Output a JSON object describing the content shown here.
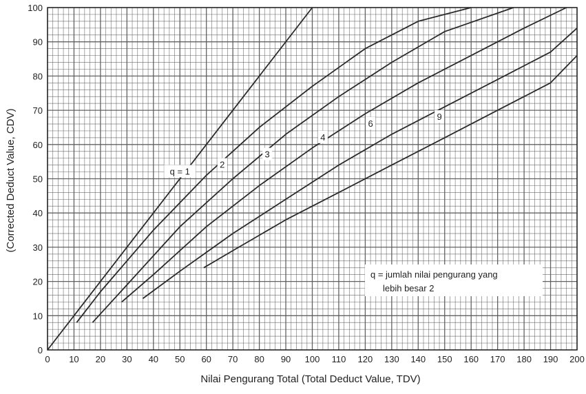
{
  "chart_data": {
    "type": "line",
    "title": "",
    "xlabel": "Nilai Pengurang Total (Total Deduct Value, TDV)",
    "ylabel": "(Corrected Deduct Value, CDV)",
    "xlim": [
      0,
      200
    ],
    "ylim": [
      0,
      100
    ],
    "x_ticks": [
      "0",
      "10",
      "20",
      "30",
      "40",
      "50",
      "60",
      "70",
      "80",
      "90",
      "100",
      "110",
      "120",
      "130",
      "140",
      "150",
      "160",
      "170",
      "180",
      "190",
      "200"
    ],
    "y_ticks": [
      "0",
      "10",
      "20",
      "30",
      "40",
      "50",
      "60",
      "70",
      "80",
      "90",
      "100"
    ],
    "grid": true,
    "series": [
      {
        "name": "q = 1",
        "label": "q = 1",
        "label_at": [
          50,
          52
        ],
        "points": [
          [
            0,
            0
          ],
          [
            20,
            20
          ],
          [
            40,
            40
          ],
          [
            60,
            60
          ],
          [
            80,
            80
          ],
          [
            100,
            100
          ]
        ]
      },
      {
        "name": "2",
        "label": "2",
        "label_at": [
          66,
          54
        ],
        "points": [
          [
            11,
            8
          ],
          [
            20,
            17
          ],
          [
            40,
            35
          ],
          [
            60,
            51
          ],
          [
            80,
            65
          ],
          [
            100,
            77
          ],
          [
            120,
            88
          ],
          [
            140,
            96
          ],
          [
            160,
            100
          ]
        ]
      },
      {
        "name": "3",
        "label": "3",
        "label_at": [
          83,
          57
        ],
        "points": [
          [
            17,
            8
          ],
          [
            30,
            19
          ],
          [
            50,
            36
          ],
          [
            70,
            50
          ],
          [
            90,
            63
          ],
          [
            110,
            74
          ],
          [
            130,
            84
          ],
          [
            150,
            93
          ],
          [
            176,
            100
          ]
        ]
      },
      {
        "name": "4",
        "label": "4",
        "label_at": [
          104,
          62
        ],
        "points": [
          [
            28,
            14
          ],
          [
            40,
            22
          ],
          [
            60,
            36
          ],
          [
            80,
            48
          ],
          [
            100,
            59
          ],
          [
            120,
            69
          ],
          [
            140,
            78
          ],
          [
            160,
            86
          ],
          [
            180,
            94
          ],
          [
            196,
            100
          ]
        ]
      },
      {
        "name": "6",
        "label": "6",
        "label_at": [
          122,
          66
        ],
        "points": [
          [
            36,
            15
          ],
          [
            50,
            23
          ],
          [
            70,
            34
          ],
          [
            90,
            44
          ],
          [
            110,
            54
          ],
          [
            130,
            63
          ],
          [
            150,
            71
          ],
          [
            170,
            79
          ],
          [
            190,
            87
          ],
          [
            200,
            94
          ]
        ]
      },
      {
        "name": "9",
        "label": "9",
        "label_at": [
          148,
          68
        ],
        "points": [
          [
            59,
            24
          ],
          [
            70,
            29
          ],
          [
            90,
            38
          ],
          [
            110,
            46
          ],
          [
            130,
            54
          ],
          [
            150,
            62
          ],
          [
            170,
            70
          ],
          [
            190,
            78
          ],
          [
            200,
            86
          ]
        ]
      }
    ],
    "legend": {
      "placement": "bottom-right",
      "line1": "q = jumlah nilai pengurang yang",
      "line2": "lebih besar 2"
    },
    "line_color": "#2a2a2a",
    "grid_color": "#5a5a5a"
  }
}
